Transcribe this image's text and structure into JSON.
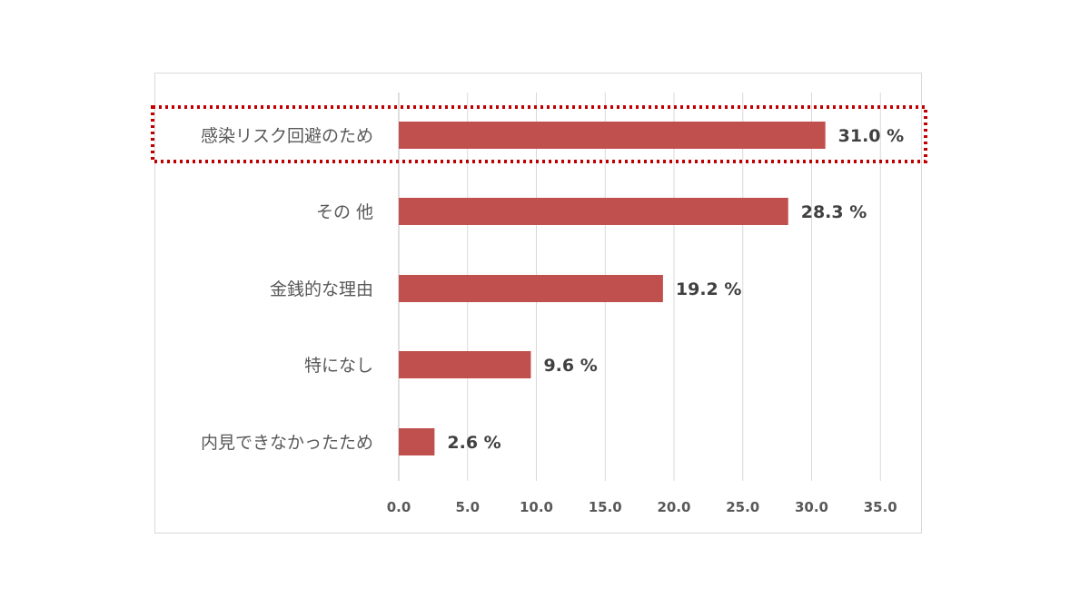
{
  "chart_data": {
    "type": "bar",
    "orientation": "horizontal",
    "categories": [
      "感染リスク回避のため",
      "その 他",
      "金銭的な理由",
      "特になし",
      "内見できなかったため"
    ],
    "values": [
      31.0,
      28.3,
      19.2,
      9.6,
      2.6
    ],
    "data_labels": [
      "31.0 %",
      "28.3 %",
      "19.2 %",
      "9.6 %",
      "2.6 %"
    ],
    "x_ticks": [
      "0.0",
      "5.0",
      "10.0",
      "15.0",
      "20.0",
      "25.0",
      "30.0",
      "35.0"
    ],
    "xlim": [
      0,
      35
    ],
    "grid": true,
    "bar_color": "#c0504d",
    "highlight": {
      "category_index": 0,
      "style": "dotted",
      "color": "#c00000"
    }
  }
}
